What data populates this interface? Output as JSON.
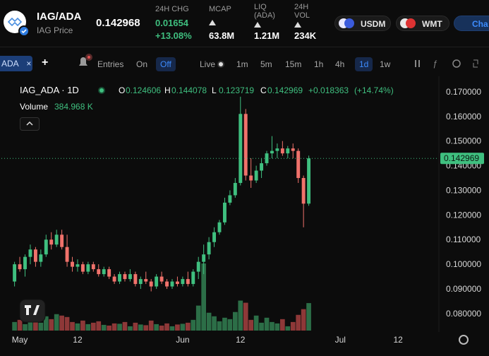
{
  "header": {
    "pair": "IAG/ADA",
    "subtitle": "IAG Price",
    "price": "0.142968",
    "stats": [
      {
        "label": "24H CHG",
        "values": [
          "0.01654",
          "+13.08%"
        ]
      },
      {
        "label": "MCAP",
        "values": [
          "63.8M"
        ]
      },
      {
        "label": "LIQ (ADA)",
        "values": [
          "1.21M"
        ]
      },
      {
        "label": "24H VOL",
        "values": [
          "234K"
        ]
      }
    ],
    "pills": [
      "USDM",
      "WMT",
      "Cha"
    ]
  },
  "toolbar": {
    "tab": "ADA",
    "close": "×",
    "add": "+",
    "entries": "Entries",
    "on": "On",
    "off": "Off",
    "live": "Live",
    "intervals": [
      "1m",
      "5m",
      "15m",
      "1h",
      "4h",
      "1d",
      "1w"
    ],
    "selected_interval": "1d"
  },
  "chart_data": {
    "type": "candlestick",
    "title": "IAG_ADA · 1D",
    "ohlc_letters": [
      "O",
      "H",
      "L",
      "C"
    ],
    "change": "+0.018363",
    "change_pct": "(+14.74%)",
    "volume_title": "Volume",
    "volume_label": "384.968 K",
    "up_color": "#3fbf7f",
    "down_color": "#f0726b",
    "volume_up_color": "#2c6e47",
    "volume_down_color": "#8e3838",
    "categories": [
      null,
      null,
      null,
      "May",
      null,
      null,
      null,
      null,
      null,
      null,
      null,
      null,
      null,
      null,
      "12",
      null,
      null,
      null,
      null,
      null,
      null,
      null,
      null,
      null,
      null,
      null,
      null,
      null,
      null,
      null,
      null,
      null,
      null,
      null,
      "Jun",
      null,
      null,
      null,
      null,
      null,
      null,
      null,
      null,
      null,
      null,
      "12",
      null,
      null,
      null,
      null,
      null,
      null,
      null,
      null,
      null,
      null,
      null,
      null,
      null,
      null,
      null,
      null,
      null,
      null,
      "Jul",
      null,
      null,
      null,
      null,
      null,
      null,
      null,
      null,
      null,
      null,
      "12",
      null,
      null,
      null,
      null,
      null,
      null,
      null
    ],
    "open": [
      null,
      null,
      0.093,
      0.1,
      0.098,
      0.103,
      0.106,
      0.101,
      0.104,
      0.11,
      0.108,
      0.112,
      0.107,
      0.101,
      0.099,
      0.1,
      0.097,
      0.1,
      0.098,
      0.096,
      0.098,
      0.095,
      0.093,
      0.096,
      0.094,
      0.096,
      0.092,
      0.094,
      0.093,
      0.091,
      0.095,
      0.093,
      0.091,
      0.093,
      0.092,
      0.094,
      0.092,
      0.097,
      0.101,
      0.104,
      0.109,
      0.113,
      0.117,
      0.125,
      0.128,
      0.133,
      0.161,
      0.136,
      0.134,
      0.138,
      0.141,
      0.145,
      0.146,
      0.147,
      0.145,
      0.147,
      0.146,
      0.135,
      0.124606,
      null,
      null,
      null,
      null,
      null,
      null,
      null,
      null,
      null,
      null,
      null,
      null,
      null,
      null,
      null,
      null,
      null,
      null,
      null,
      null,
      null,
      null,
      null,
      null
    ],
    "high": [
      null,
      null,
      0.101,
      0.103,
      0.104,
      0.108,
      0.107,
      0.106,
      0.112,
      0.113,
      0.114,
      0.114,
      0.112,
      0.103,
      0.102,
      0.101,
      0.101,
      0.101,
      0.1,
      0.099,
      0.099,
      0.096,
      0.097,
      0.097,
      0.098,
      0.097,
      0.095,
      0.097,
      0.094,
      0.096,
      0.097,
      0.094,
      0.094,
      0.095,
      0.095,
      0.097,
      0.098,
      0.103,
      0.108,
      0.111,
      0.115,
      0.118,
      0.127,
      0.13,
      0.135,
      0.168,
      0.163,
      0.143,
      0.14,
      0.143,
      0.146,
      0.152,
      0.149,
      0.15,
      0.148,
      0.149,
      0.147,
      0.136,
      0.144078,
      null,
      null,
      null,
      null,
      null,
      null,
      null,
      null,
      null,
      null,
      null,
      null,
      null,
      null,
      null,
      null,
      null,
      null,
      null,
      null,
      null,
      null,
      null,
      null
    ],
    "low": [
      null,
      null,
      0.091,
      0.097,
      0.095,
      0.1,
      0.099,
      0.099,
      0.103,
      0.106,
      0.107,
      0.106,
      0.099,
      0.097,
      0.097,
      0.096,
      0.096,
      0.097,
      0.095,
      0.095,
      0.094,
      0.092,
      0.092,
      0.093,
      0.093,
      0.091,
      0.09,
      0.092,
      0.089,
      0.09,
      0.092,
      0.09,
      0.09,
      0.091,
      0.091,
      0.091,
      0.091,
      0.094,
      0.096,
      0.102,
      0.107,
      0.112,
      0.116,
      0.124,
      0.127,
      0.132,
      0.134,
      0.131,
      0.133,
      0.135,
      0.14,
      0.143,
      0.143,
      0.144,
      0.143,
      0.143,
      0.133,
      0.115,
      0.123719,
      null,
      null,
      null,
      null,
      null,
      null,
      null,
      null,
      null,
      null,
      null,
      null,
      null,
      null,
      null,
      null,
      null,
      null,
      null,
      null,
      null,
      null,
      null,
      null
    ],
    "close": [
      null,
      null,
      0.1,
      0.098,
      0.103,
      0.106,
      0.101,
      0.104,
      0.11,
      0.108,
      0.112,
      0.107,
      0.101,
      0.099,
      0.1,
      0.097,
      0.1,
      0.098,
      0.096,
      0.098,
      0.095,
      0.093,
      0.096,
      0.094,
      0.096,
      0.092,
      0.094,
      0.093,
      0.091,
      0.095,
      0.093,
      0.091,
      0.093,
      0.092,
      0.094,
      0.092,
      0.097,
      0.101,
      0.104,
      0.109,
      0.113,
      0.117,
      0.125,
      0.128,
      0.133,
      0.161,
      0.136,
      0.134,
      0.138,
      0.141,
      0.145,
      0.146,
      0.147,
      0.145,
      0.147,
      0.146,
      0.135,
      0.1246,
      0.142969,
      null,
      null,
      null,
      null,
      null,
      null,
      null,
      null,
      null,
      null,
      null,
      null,
      null,
      null,
      null,
      null,
      null,
      null,
      null,
      null,
      null,
      null,
      null,
      null
    ],
    "volume": [
      null,
      null,
      120,
      150,
      90,
      180,
      140,
      110,
      200,
      160,
      230,
      210,
      190,
      120,
      100,
      140,
      90,
      110,
      130,
      80,
      70,
      100,
      95,
      120,
      60,
      110,
      85,
      75,
      140,
      90,
      70,
      100,
      60,
      85,
      95,
      110,
      150,
      350,
      940,
      250,
      200,
      130,
      180,
      160,
      260,
      420,
      390,
      150,
      210,
      110,
      180,
      120,
      100,
      160,
      60,
      120,
      220,
      300,
      384.968,
      null,
      null,
      null,
      null,
      null,
      null,
      null,
      null,
      null,
      null,
      null,
      null,
      null,
      null,
      null,
      null,
      null,
      null,
      null,
      null,
      null,
      null,
      null,
      null
    ],
    "ylim": [
      0.0731,
      0.1757
    ],
    "yticks": [
      {
        "value": 0.08,
        "label": "0.080000"
      },
      {
        "value": 0.09,
        "label": "0.090000"
      },
      {
        "value": 0.1,
        "label": "0.100000"
      },
      {
        "value": 0.11,
        "label": "0.110000"
      },
      {
        "value": 0.12,
        "label": "0.120000"
      },
      {
        "value": 0.13,
        "label": "0.130000"
      },
      {
        "value": 0.14,
        "label": "0.140000"
      },
      {
        "value": 0.15,
        "label": "0.150000"
      },
      {
        "value": 0.16,
        "label": "0.160000"
      },
      {
        "value": 0.17,
        "label": "0.170000"
      }
    ],
    "grid": false
  }
}
